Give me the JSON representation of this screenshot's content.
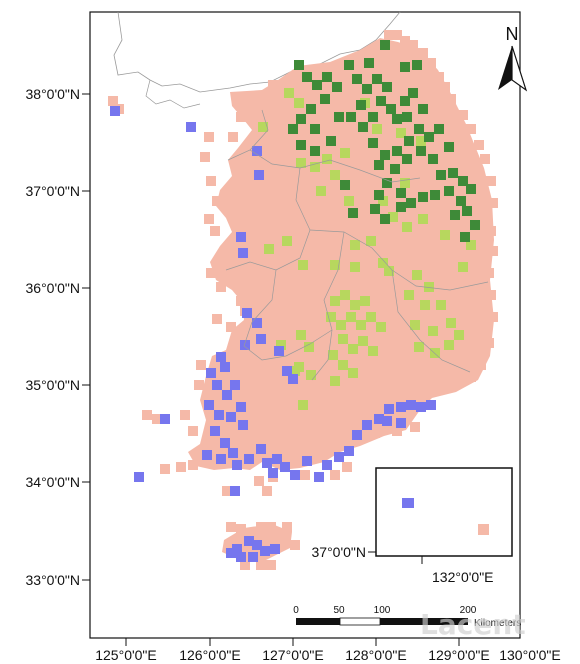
{
  "lat_labels": [
    "38°0'0\"N",
    "37°0'0\"N",
    "36°0'0\"N",
    "35°0'0\"N",
    "34°0'0\"N",
    "33°0'0\"N"
  ],
  "lon_labels": [
    "125°0'0\"E",
    "126°0'0\"E",
    "127°0'0\"E",
    "128°0'0\"E",
    "129°0'0\"E",
    "130°0'0\"E"
  ],
  "north_label": "N",
  "scale": {
    "ticks": [
      "0",
      "50",
      "100",
      "200"
    ],
    "unit": "Kilometers"
  },
  "inset": {
    "lat_label": "37°0'0\"N",
    "lon_label": "132°0'0\"E"
  },
  "watermark": "Lacent",
  "colors": {
    "land_base": "#f5b9a8",
    "dark_green": "#3e8a38",
    "light_green": "#b7d75e",
    "blue": "#7676ee",
    "outline": "#9a9a9a",
    "frame": "#111111"
  }
}
